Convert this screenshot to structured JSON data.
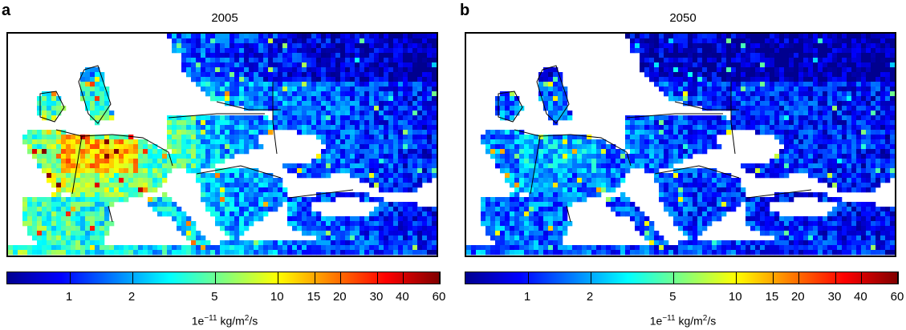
{
  "panels": [
    {
      "letter": "a",
      "title": "2005",
      "colorbar": {
        "ticks": [
          "1",
          "2",
          "5",
          "10",
          "15",
          "20",
          "30",
          "40",
          "60"
        ],
        "unit_base": "1e",
        "unit_exp": "−11",
        "unit_mid": " kg/m",
        "unit_exp2": "2",
        "unit_end": "/s"
      }
    },
    {
      "letter": "b",
      "title": "2050",
      "colorbar": {
        "ticks": [
          "1",
          "2",
          "5",
          "10",
          "15",
          "20",
          "30",
          "40",
          "60"
        ],
        "unit_base": "1e",
        "unit_exp": "−11",
        "unit_mid": " kg/m",
        "unit_exp2": "2",
        "unit_end": "/s"
      }
    }
  ],
  "colormap": [
    "#00008f",
    "#0000ff",
    "#007fff",
    "#00ffff",
    "#7fff7f",
    "#ffff00",
    "#ff7f00",
    "#ff0000",
    "#7f0000"
  ],
  "colorbar_range": [
    0.5,
    60
  ],
  "colorbar_scale": "log"
}
